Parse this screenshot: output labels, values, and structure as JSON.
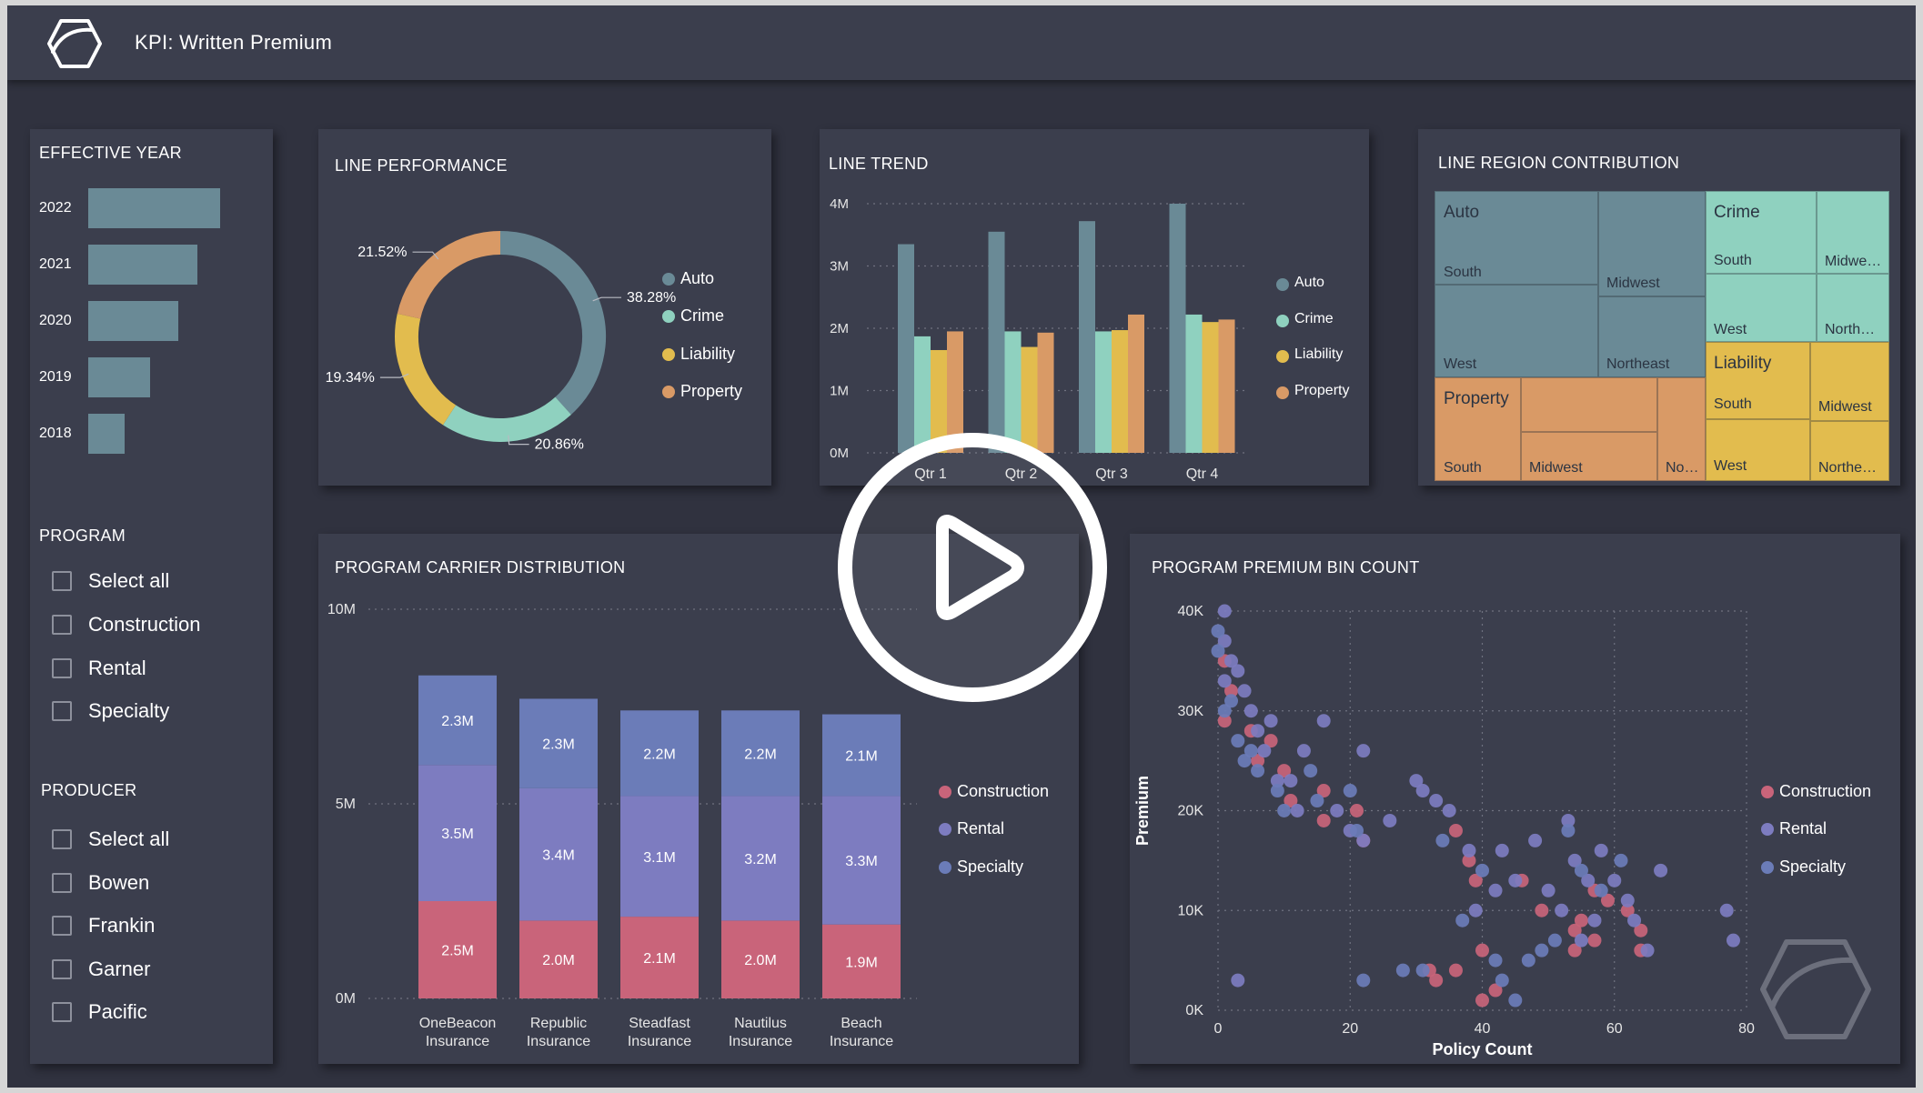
{
  "app": {
    "title": "KPI: Written Premium",
    "logo_icon": "hexagon-logo-icon"
  },
  "colors": {
    "background": "#30323f",
    "panel": "#3b3e4d",
    "auto": "#6a8a96",
    "crime": "#8fd1bf",
    "liability": "#e2bc4e",
    "property": "#d99a66",
    "construction": "#c9647a",
    "rental": "#7d7cc0",
    "specialty": "#6b7cb8"
  },
  "filters": {
    "effective_year": {
      "title": "EFFECTIVE YEAR",
      "items": [
        {
          "label": "2022",
          "value": 1.0
        },
        {
          "label": "2021",
          "value": 0.83
        },
        {
          "label": "2020",
          "value": 0.68
        },
        {
          "label": "2019",
          "value": 0.47
        },
        {
          "label": "2018",
          "value": 0.27
        }
      ]
    },
    "program": {
      "title": "PROGRAM",
      "items": [
        "Select all",
        "Construction",
        "Rental",
        "Specialty"
      ]
    },
    "producer": {
      "title": "PRODUCER",
      "items": [
        "Select all",
        "Bowen",
        "Frankin",
        "Garner",
        "Pacific"
      ]
    }
  },
  "line_performance": {
    "title": "LINE PERFORMANCE",
    "legend": [
      "Auto",
      "Crime",
      "Liability",
      "Property"
    ],
    "chart_data": {
      "type": "pie",
      "labels": [
        "Auto",
        "Crime",
        "Liability",
        "Property"
      ],
      "values": [
        38.28,
        20.86,
        19.34,
        21.52
      ],
      "value_labels": [
        "38.28%",
        "20.86%",
        "19.34%",
        "21.52%"
      ]
    }
  },
  "line_trend": {
    "title": "LINE TREND",
    "legend": [
      "Auto",
      "Crime",
      "Liability",
      "Property"
    ],
    "chart_data": {
      "type": "bar",
      "categories": [
        "Qtr 1",
        "Qtr 2",
        "Qtr 3",
        "Qtr 4"
      ],
      "series": [
        {
          "name": "Auto",
          "values": [
            3.35,
            3.55,
            3.72,
            4.0
          ]
        },
        {
          "name": "Crime",
          "values": [
            1.87,
            1.95,
            1.95,
            2.22
          ]
        },
        {
          "name": "Liability",
          "values": [
            1.65,
            1.7,
            1.97,
            2.1
          ]
        },
        {
          "name": "Property",
          "values": [
            1.95,
            1.93,
            2.22,
            2.14
          ]
        }
      ],
      "yticks": [
        "0M",
        "1M",
        "2M",
        "3M",
        "4M"
      ],
      "ylim": [
        0,
        4
      ]
    }
  },
  "line_region": {
    "title": "LINE REGION CONTRIBUTION",
    "groups": [
      {
        "name": "Auto",
        "regions": [
          "South",
          "Midwest",
          "West",
          "Northeast"
        ]
      },
      {
        "name": "Crime",
        "regions": [
          "South",
          "Midwe…",
          "West",
          "North…"
        ]
      },
      {
        "name": "Liability",
        "regions": [
          "South",
          "Midwest",
          "West",
          "Northe…"
        ]
      },
      {
        "name": "Property",
        "regions": [
          "South",
          "Midwest",
          "No…"
        ]
      }
    ]
  },
  "program_carrier": {
    "title": "PROGRAM CARRIER DISTRIBUTION",
    "legend": [
      "Construction",
      "Rental",
      "Specialty"
    ],
    "chart_data": {
      "type": "bar",
      "stacked": true,
      "categories": [
        "OneBeacon Insurance",
        "Republic Insurance",
        "Steadfast Insurance",
        "Nautilus Insurance",
        "Beach Insurance"
      ],
      "series": [
        {
          "name": "Construction",
          "values": [
            2.5,
            2.0,
            2.1,
            2.0,
            1.9
          ],
          "labels": [
            "2.5M",
            "2.0M",
            "2.1M",
            "2.0M",
            "1.9M"
          ]
        },
        {
          "name": "Rental",
          "values": [
            3.5,
            3.4,
            3.1,
            3.2,
            3.3
          ],
          "labels": [
            "3.5M",
            "3.4M",
            "3.1M",
            "3.2M",
            "3.3M"
          ]
        },
        {
          "name": "Specialty",
          "values": [
            2.3,
            2.3,
            2.2,
            2.2,
            2.1
          ],
          "labels": [
            "2.3M",
            "2.3M",
            "2.2M",
            "2.2M",
            "2.1M"
          ]
        }
      ],
      "yticks": [
        "0M",
        "5M",
        "10M"
      ],
      "ylim": [
        0,
        10
      ]
    }
  },
  "program_premium": {
    "title": "PROGRAM PREMIUM BIN COUNT",
    "legend": [
      "Construction",
      "Rental",
      "Specialty"
    ],
    "watermark_icon": "hexagon-watermark-icon",
    "chart_data": {
      "type": "scatter",
      "xlabel": "Policy Count",
      "ylabel": "Premium",
      "xticks": [
        "0",
        "20",
        "40",
        "60",
        "80"
      ],
      "yticks": [
        "0K",
        "10K",
        "20K",
        "30K",
        "40K"
      ],
      "xlim": [
        0,
        80
      ],
      "ylim": [
        0,
        40
      ],
      "series": [
        {
          "name": "Construction",
          "points": [
            [
              1,
              35
            ],
            [
              1,
              29
            ],
            [
              2,
              32
            ],
            [
              5,
              28
            ],
            [
              6,
              25
            ],
            [
              8,
              27
            ],
            [
              10,
              24
            ],
            [
              11,
              21
            ],
            [
              16,
              22
            ],
            [
              16,
              19
            ],
            [
              21,
              20
            ],
            [
              22,
              17
            ],
            [
              32,
              4
            ],
            [
              33,
              3
            ],
            [
              36,
              18
            ],
            [
              36,
              4
            ],
            [
              38,
              15
            ],
            [
              39,
              13
            ],
            [
              40,
              6
            ],
            [
              40,
              1
            ],
            [
              42,
              2
            ],
            [
              46,
              13
            ],
            [
              49,
              10
            ],
            [
              54,
              8
            ],
            [
              54,
              6
            ],
            [
              55,
              9
            ],
            [
              57,
              12
            ],
            [
              57,
              7
            ],
            [
              59,
              11
            ],
            [
              62,
              10
            ],
            [
              64,
              8
            ],
            [
              64,
              6
            ]
          ]
        },
        {
          "name": "Rental",
          "points": [
            [
              1,
              40
            ],
            [
              1,
              37
            ],
            [
              1,
              33
            ],
            [
              2,
              35
            ],
            [
              3,
              34
            ],
            [
              4,
              32
            ],
            [
              5,
              30
            ],
            [
              6,
              28
            ],
            [
              7,
              26
            ],
            [
              8,
              29
            ],
            [
              9,
              23
            ],
            [
              11,
              23
            ],
            [
              13,
              26
            ],
            [
              16,
              29
            ],
            [
              18,
              20
            ],
            [
              22,
              26
            ],
            [
              22,
              17
            ],
            [
              26,
              19
            ],
            [
              30,
              23
            ],
            [
              31,
              22
            ],
            [
              33,
              21
            ],
            [
              35,
              20
            ],
            [
              38,
              16
            ],
            [
              39,
              10
            ],
            [
              42,
              12
            ],
            [
              43,
              16
            ],
            [
              45,
              13
            ],
            [
              48,
              17
            ],
            [
              50,
              12
            ],
            [
              52,
              10
            ],
            [
              53,
              19
            ],
            [
              54,
              15
            ],
            [
              55,
              7
            ],
            [
              56,
              13
            ],
            [
              57,
              9
            ],
            [
              58,
              16
            ],
            [
              60,
              13
            ],
            [
              62,
              11
            ],
            [
              63,
              9
            ],
            [
              65,
              6
            ],
            [
              67,
              14
            ],
            [
              77,
              10
            ],
            [
              78,
              7
            ],
            [
              3,
              3
            ],
            [
              12,
              20
            ],
            [
              20,
              18
            ]
          ]
        },
        {
          "name": "Specialty",
          "points": [
            [
              0,
              38
            ],
            [
              0,
              36
            ],
            [
              1,
              30
            ],
            [
              2,
              31
            ],
            [
              3,
              27
            ],
            [
              4,
              25
            ],
            [
              5,
              26
            ],
            [
              6,
              24
            ],
            [
              9,
              22
            ],
            [
              10,
              20
            ],
            [
              14,
              24
            ],
            [
              15,
              21
            ],
            [
              20,
              22
            ],
            [
              21,
              18
            ],
            [
              22,
              3
            ],
            [
              28,
              4
            ],
            [
              31,
              4
            ],
            [
              34,
              17
            ],
            [
              37,
              9
            ],
            [
              40,
              14
            ],
            [
              42,
              5
            ],
            [
              43,
              3
            ],
            [
              45,
              1
            ],
            [
              47,
              5
            ],
            [
              49,
              6
            ],
            [
              51,
              7
            ],
            [
              53,
              18
            ],
            [
              55,
              14
            ],
            [
              58,
              12
            ],
            [
              61,
              15
            ]
          ]
        }
      ]
    }
  },
  "overlay": {
    "play_icon": "play-button-icon"
  }
}
